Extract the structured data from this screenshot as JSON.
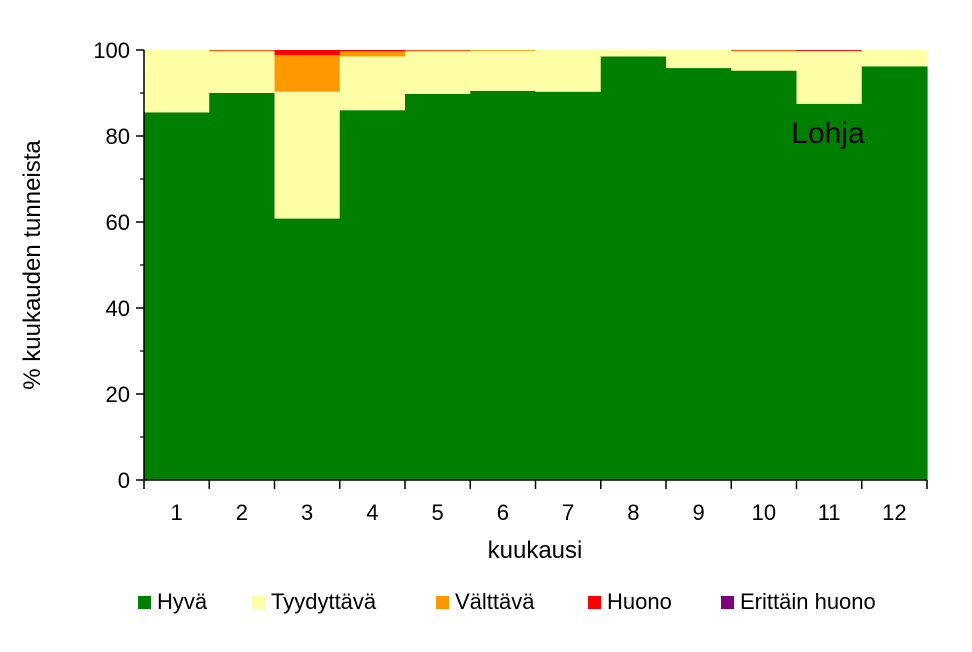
{
  "chart_data": {
    "type": "bar",
    "stacked": true,
    "title": "",
    "annotation": "Lohja",
    "xlabel": "kuukausi",
    "ylabel": "% kuukauden tunneista",
    "ylim": [
      0,
      100
    ],
    "yticks": [
      "0",
      "20",
      "40",
      "60",
      "80",
      "100"
    ],
    "categories": [
      "1",
      "2",
      "3",
      "4",
      "5",
      "6",
      "7",
      "8",
      "9",
      "10",
      "11",
      "12"
    ],
    "legend_position": "bottom",
    "series": [
      {
        "name": "Hyvä",
        "color": "#008000",
        "values": [
          85.5,
          90.0,
          60.8,
          86.0,
          89.8,
          90.5,
          90.3,
          98.5,
          95.8,
          95.2,
          87.5,
          96.2
        ]
      },
      {
        "name": "Tyydyttävä",
        "color": "#FFFFA8",
        "values": [
          14.5,
          9.7,
          29.5,
          12.5,
          9.9,
          9.3,
          9.7,
          1.5,
          4.2,
          4.5,
          12.2,
          3.8
        ]
      },
      {
        "name": "Välttävä",
        "color": "#FF9900",
        "values": [
          0.0,
          0.2,
          8.5,
          1.2,
          0.2,
          0.2,
          0.0,
          0.0,
          0.0,
          0.2,
          0.1,
          0.0
        ]
      },
      {
        "name": "Huono",
        "color": "#FF0000",
        "values": [
          0.0,
          0.1,
          1.2,
          0.3,
          0.1,
          0.0,
          0.0,
          0.0,
          0.0,
          0.1,
          0.2,
          0.0
        ]
      },
      {
        "name": "Erittäin huono",
        "color": "#800080",
        "values": [
          0.0,
          0.0,
          0.0,
          0.0,
          0.0,
          0.0,
          0.0,
          0.0,
          0.0,
          0.0,
          0.0,
          0.0
        ]
      }
    ]
  }
}
